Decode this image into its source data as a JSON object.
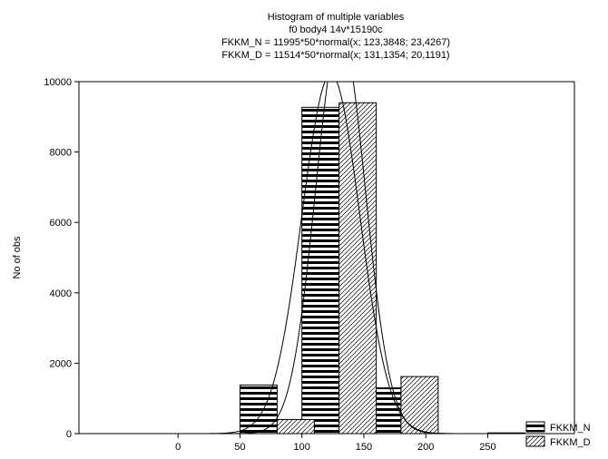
{
  "chart_data": {
    "type": "bar",
    "title": "Histogram of multiple variables",
    "subtitle": "f0 body4 14v*15190c",
    "fit_lines": [
      "FKKM_N = 11995*50*normal(x; 123,3848; 23,4267)",
      "FKKM_D = 11514*50*normal(x; 131,1354; 20,1191)"
    ],
    "xlabel": "",
    "ylabel": "No of obs",
    "xlim": [
      -80,
      320
    ],
    "ylim": [
      0,
      10000
    ],
    "x_ticks": [
      0,
      50,
      100,
      150,
      200,
      250
    ],
    "y_ticks": [
      0,
      2000,
      4000,
      6000,
      8000,
      10000
    ],
    "grid": false,
    "legend_position": "bottom-right",
    "bin_width": 50,
    "bin_centers": [
      25,
      75,
      125,
      175,
      225,
      275
    ],
    "series": [
      {
        "name": "FKKM_N",
        "pattern": "horizontal-stripes",
        "values": [
          0,
          1380,
          9270,
          1300,
          0,
          20
        ],
        "fit": {
          "n": 11995,
          "mean": 123.3848,
          "sd": 23.4267
        }
      },
      {
        "name": "FKKM_D",
        "pattern": "diagonal-hatch",
        "values": [
          0,
          400,
          9400,
          1620,
          0,
          0
        ],
        "fit": {
          "n": 11514,
          "mean": 131.1354,
          "sd": 20.1191
        }
      }
    ]
  }
}
